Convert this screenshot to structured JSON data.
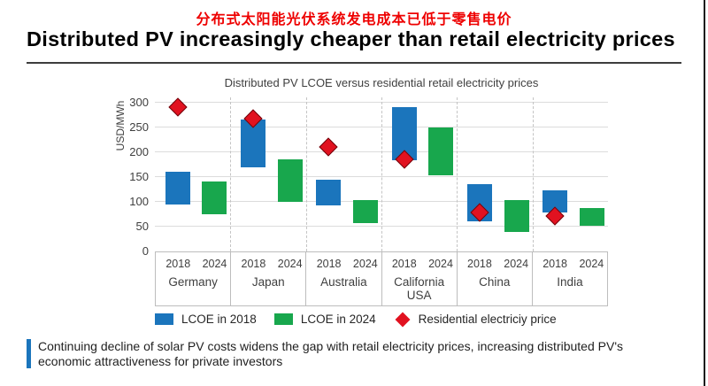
{
  "page": {
    "heading_cn": "分布式太阳能光伏系统发电成本已低于零售电价",
    "title_en": "Distributed PV increasingly cheaper than retail electricity prices",
    "callout": "Continuing decline of solar PV costs widens the gap with retail electricity prices, increasing distributed PV's economic attractiveness for private investors"
  },
  "colors": {
    "lcoe_2018_blue": "#1b75bc",
    "lcoe_2024_green": "#18a74d",
    "retail_price_red": "#e11220",
    "heading_red": "#ee0000",
    "callout_accent": "#1b75bc"
  },
  "chart_data": {
    "type": "bar",
    "subtype": "floating-range-bars-with-point-markers",
    "title": "Distributed PV LCOE versus residential retail electricity prices",
    "xlabel": "",
    "ylabel": "USD/MWh",
    "ylim": [
      0,
      310
    ],
    "yticks": [
      0,
      50,
      100,
      150,
      200,
      250,
      300
    ],
    "grid": true,
    "legend_position": "bottom",
    "categories": [
      "Germany",
      "Japan",
      "Australia",
      "California USA",
      "China",
      "India"
    ],
    "year_labels": [
      "2018",
      "2024"
    ],
    "series": [
      {
        "name": "LCOE in 2018",
        "type": "range",
        "color": "#1b75bc",
        "ranges": [
          [
            95,
            160
          ],
          [
            170,
            265
          ],
          [
            93,
            145
          ],
          [
            183,
            290
          ],
          [
            60,
            135
          ],
          [
            78,
            123
          ]
        ]
      },
      {
        "name": "LCOE in 2024",
        "type": "range",
        "color": "#18a74d",
        "ranges": [
          [
            75,
            140
          ],
          [
            100,
            185
          ],
          [
            57,
            103
          ],
          [
            153,
            250
          ],
          [
            40,
            103
          ],
          [
            51,
            88
          ]
        ]
      },
      {
        "name": "Residential electriciy price",
        "type": "point",
        "color": "#e11220",
        "values": [
          290,
          268,
          210,
          185,
          78,
          72
        ]
      }
    ]
  }
}
